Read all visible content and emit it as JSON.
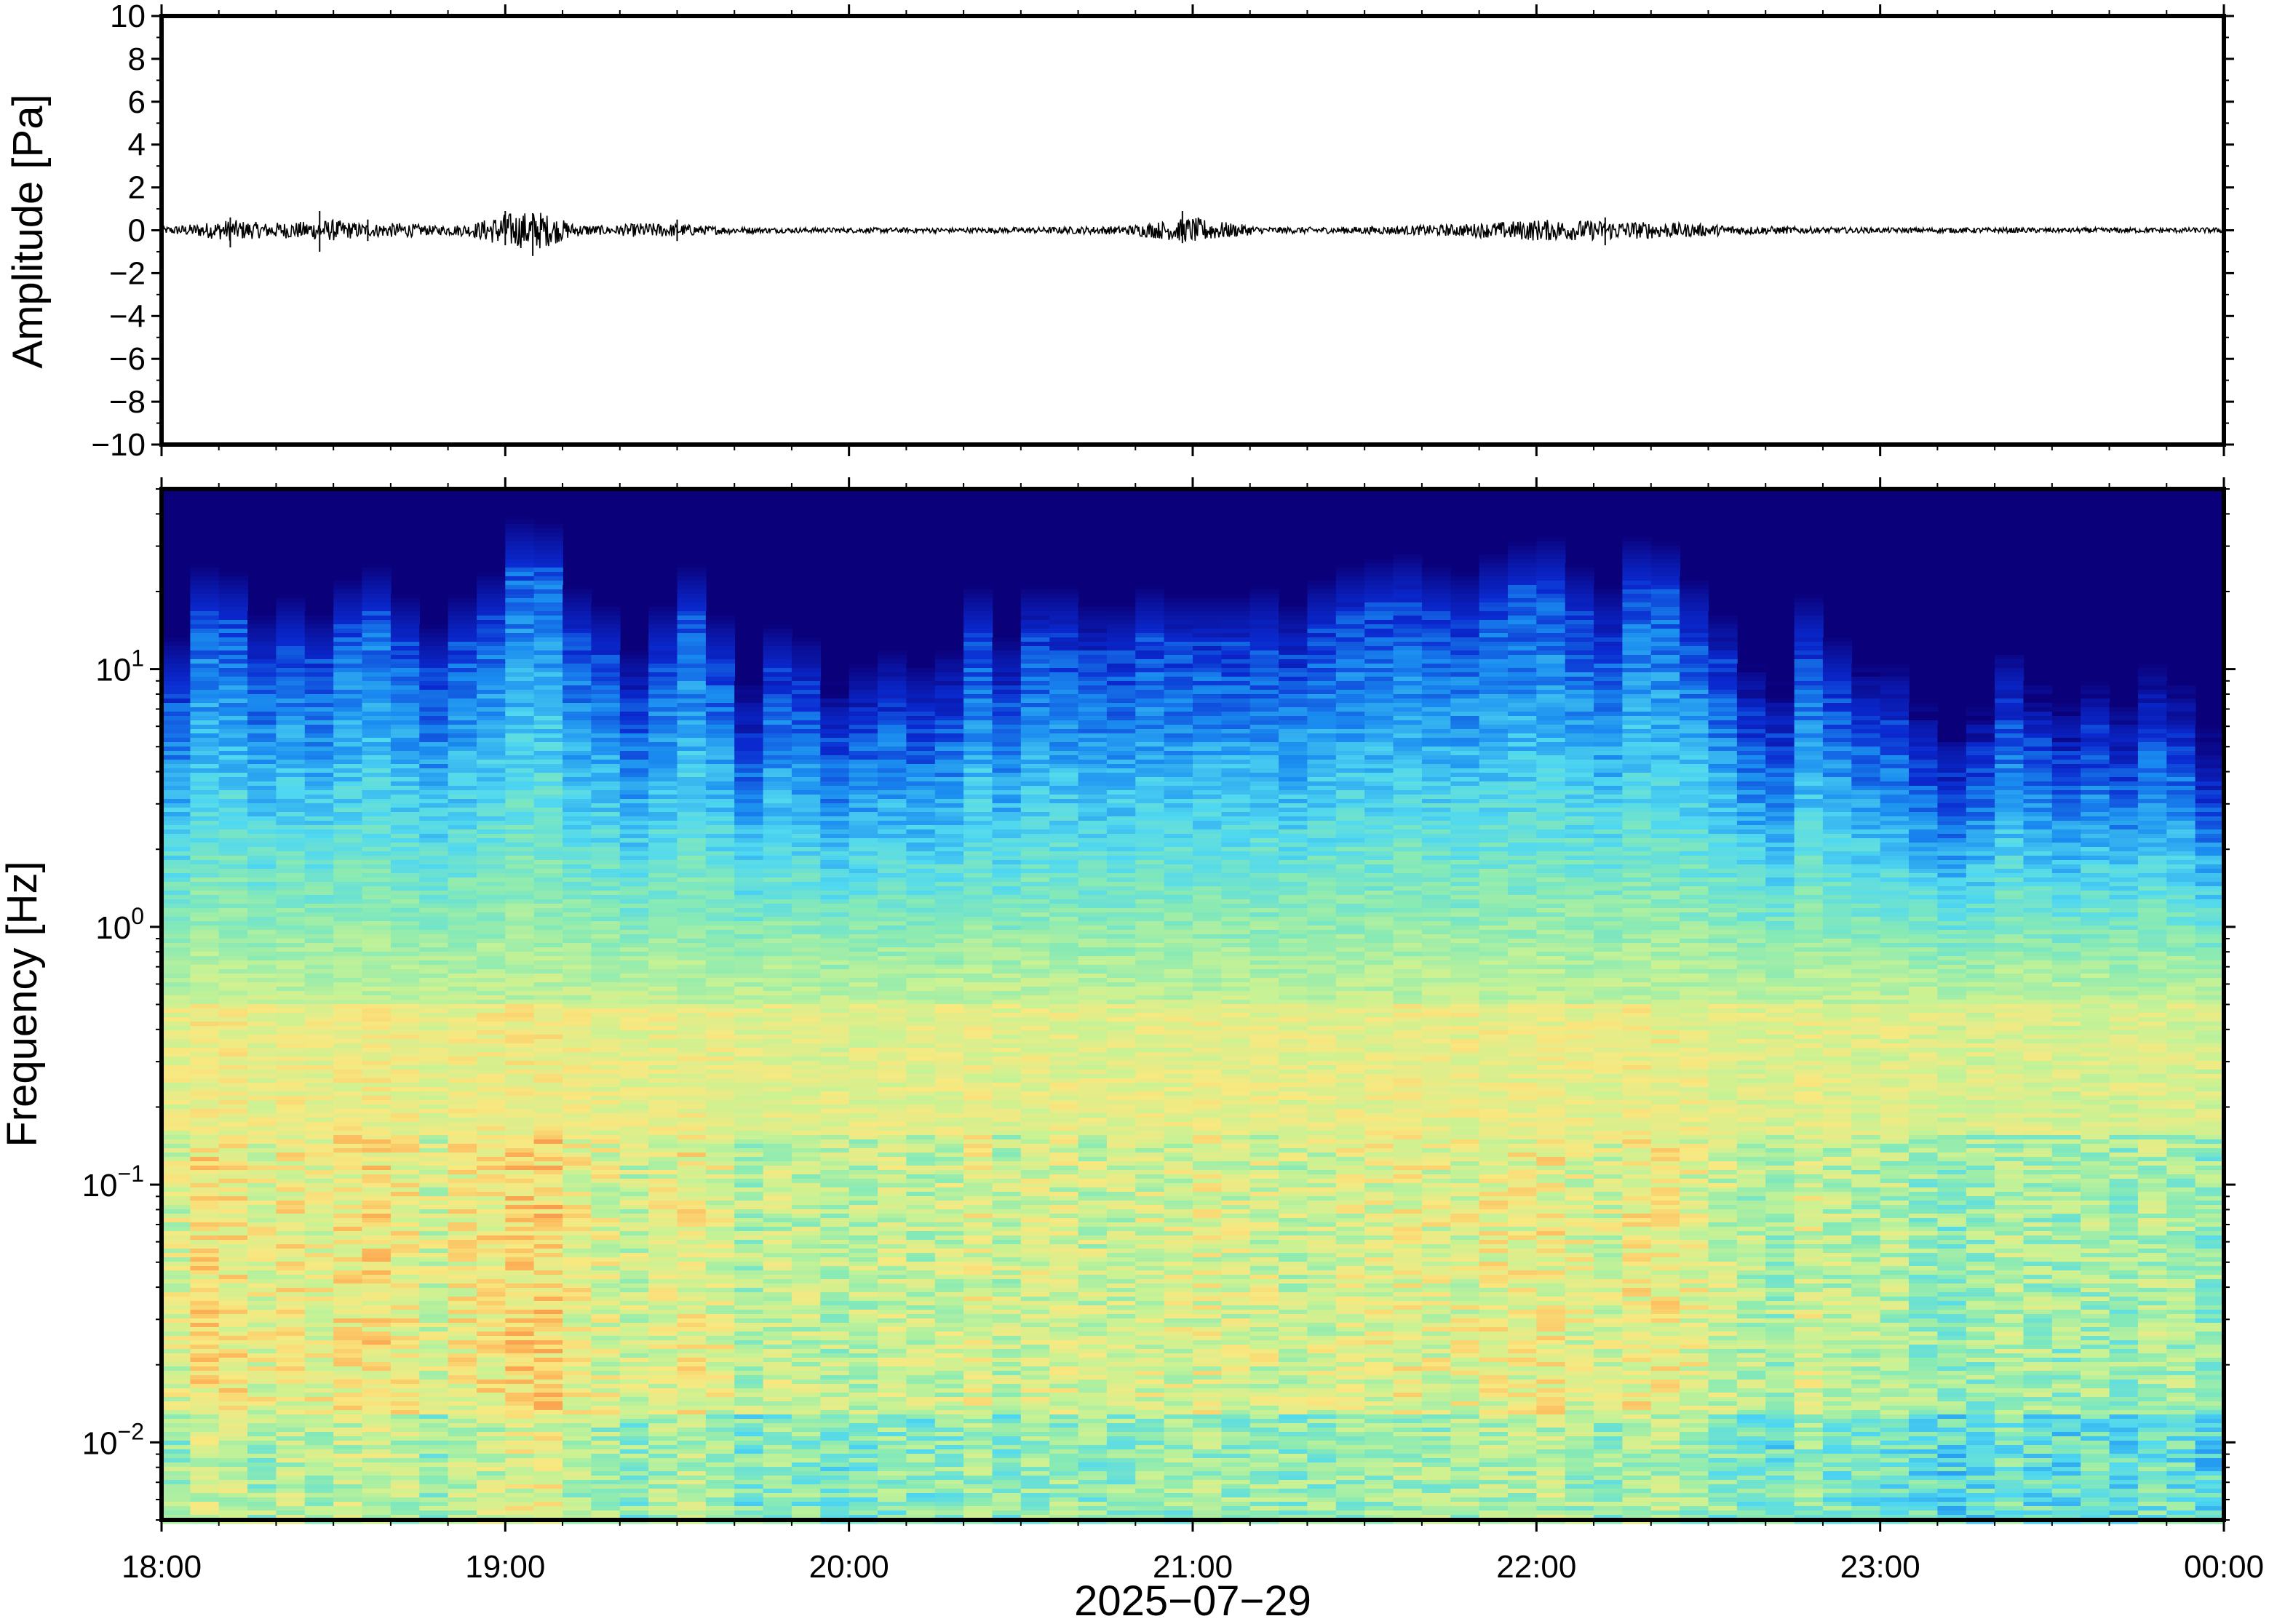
{
  "chart_data": [
    {
      "type": "line",
      "panel": "waveform",
      "ylabel": "Amplitude [Pa]",
      "ylim": [
        -10,
        10
      ],
      "yticks": [
        10,
        8,
        6,
        4,
        2,
        0,
        -2,
        -4,
        -6,
        -8,
        -10
      ],
      "ytick_labels": [
        "10",
        "8",
        "6",
        "4",
        "2",
        "0",
        "−2",
        "−4",
        "−6",
        "−8",
        "−10"
      ],
      "xlim": [
        "2025-07-29 18:00",
        "2025-07-30 00:00"
      ],
      "line_color": "#000000",
      "envelope": {
        "t_hours": [
          0.0,
          0.1,
          0.2,
          0.3,
          0.4,
          0.5,
          0.6,
          0.7,
          0.8,
          0.9,
          1.0,
          1.1,
          1.2,
          1.3,
          1.4,
          1.5,
          1.6,
          1.7,
          1.8,
          1.9,
          2.0,
          2.2,
          2.4,
          2.6,
          2.8,
          3.0,
          3.2,
          3.4,
          3.6,
          3.8,
          4.0,
          4.2,
          4.4,
          4.6,
          4.8,
          5.0,
          5.2,
          5.4,
          5.6,
          5.8,
          6.0
        ],
        "amplitude_pa": [
          0.15,
          0.3,
          0.5,
          0.35,
          0.4,
          0.5,
          0.3,
          0.35,
          0.2,
          0.3,
          0.8,
          0.9,
          0.3,
          0.2,
          0.35,
          0.3,
          0.2,
          0.15,
          0.12,
          0.12,
          0.12,
          0.12,
          0.12,
          0.15,
          0.2,
          0.6,
          0.15,
          0.15,
          0.2,
          0.3,
          0.5,
          0.45,
          0.35,
          0.2,
          0.15,
          0.12,
          0.12,
          0.12,
          0.12,
          0.12,
          0.12
        ]
      },
      "spikes": [
        {
          "t_hours": 0.2,
          "max_pa": 0.6,
          "min_pa": -0.8
        },
        {
          "t_hours": 0.46,
          "max_pa": 0.9,
          "min_pa": -1.0
        },
        {
          "t_hours": 0.6,
          "max_pa": 0.5,
          "min_pa": -0.5
        },
        {
          "t_hours": 1.0,
          "max_pa": 0.9,
          "min_pa": -0.7
        },
        {
          "t_hours": 1.08,
          "max_pa": 0.8,
          "min_pa": -1.2
        },
        {
          "t_hours": 1.5,
          "max_pa": 0.5,
          "min_pa": -0.5
        },
        {
          "t_hours": 2.97,
          "max_pa": 0.9,
          "min_pa": -0.6
        },
        {
          "t_hours": 4.2,
          "max_pa": 0.6,
          "min_pa": -0.7
        }
      ]
    },
    {
      "type": "heatmap",
      "panel": "spectrogram",
      "ylabel": "Frequency [Hz]",
      "xlabel": "2025−07−29",
      "yscale": "log",
      "ylim_hz": [
        0.005,
        50
      ],
      "yticks_hz": [
        0.01,
        0.1,
        1,
        10
      ],
      "ytick_labels": [
        {
          "base": "10",
          "exp": "−2"
        },
        {
          "base": "10",
          "exp": "−1"
        },
        {
          "base": "10",
          "exp": "0"
        },
        {
          "base": "10",
          "exp": "1"
        }
      ],
      "xticks": [
        "18:00",
        "19:00",
        "20:00",
        "21:00",
        "22:00",
        "23:00",
        "00:00"
      ],
      "xlim": [
        "2025-07-29 18:00",
        "2025-07-30 00:00"
      ],
      "colormap": [
        "#0a007a",
        "#0a2ad0",
        "#1a8cf0",
        "#50d8f0",
        "#88eab4",
        "#c8f294",
        "#f8e880",
        "#fcb458",
        "#f47a3c"
      ],
      "column_minutes": 5,
      "upper_edge_hz": [
        9.0,
        17.0,
        16.0,
        11.0,
        13.0,
        11.0,
        15.0,
        17.0,
        13.0,
        10.0,
        13.0,
        16.0,
        26.0,
        25.0,
        14.0,
        12.0,
        8.0,
        12.0,
        17.0,
        11.0,
        6.0,
        10.0,
        9.0,
        6.0,
        7.0,
        8.0,
        7.0,
        8.0,
        14.0,
        9.0,
        14.0,
        14.0,
        12.0,
        12.0,
        14.0,
        13.0,
        13.0,
        13.0,
        14.0,
        12.0,
        15.0,
        17.0,
        18.0,
        19.0,
        17.0,
        16.0,
        19.0,
        21.0,
        22.0,
        17.0,
        14.0,
        22.0,
        21.0,
        15.0,
        11.0,
        7.0,
        6.0,
        13.0,
        9.0,
        7.0,
        7.0,
        5.0,
        4.0,
        5.0,
        8.0,
        6.0,
        5.0,
        6.0,
        5.0,
        7.0,
        6.0,
        4.0
      ],
      "column_intensity": [
        0.45,
        0.7,
        0.65,
        0.5,
        0.6,
        0.55,
        0.65,
        0.7,
        0.6,
        0.45,
        0.6,
        0.65,
        0.75,
        0.78,
        0.55,
        0.5,
        0.4,
        0.5,
        0.6,
        0.5,
        0.3,
        0.4,
        0.35,
        0.3,
        0.35,
        0.4,
        0.35,
        0.4,
        0.5,
        0.35,
        0.45,
        0.45,
        0.4,
        0.4,
        0.45,
        0.45,
        0.5,
        0.45,
        0.45,
        0.4,
        0.45,
        0.5,
        0.5,
        0.55,
        0.5,
        0.5,
        0.55,
        0.55,
        0.6,
        0.5,
        0.45,
        0.6,
        0.6,
        0.5,
        0.4,
        0.3,
        0.25,
        0.45,
        0.35,
        0.3,
        0.3,
        0.2,
        0.15,
        0.2,
        0.3,
        0.25,
        0.2,
        0.25,
        0.2,
        0.3,
        0.25,
        0.15
      ]
    }
  ]
}
